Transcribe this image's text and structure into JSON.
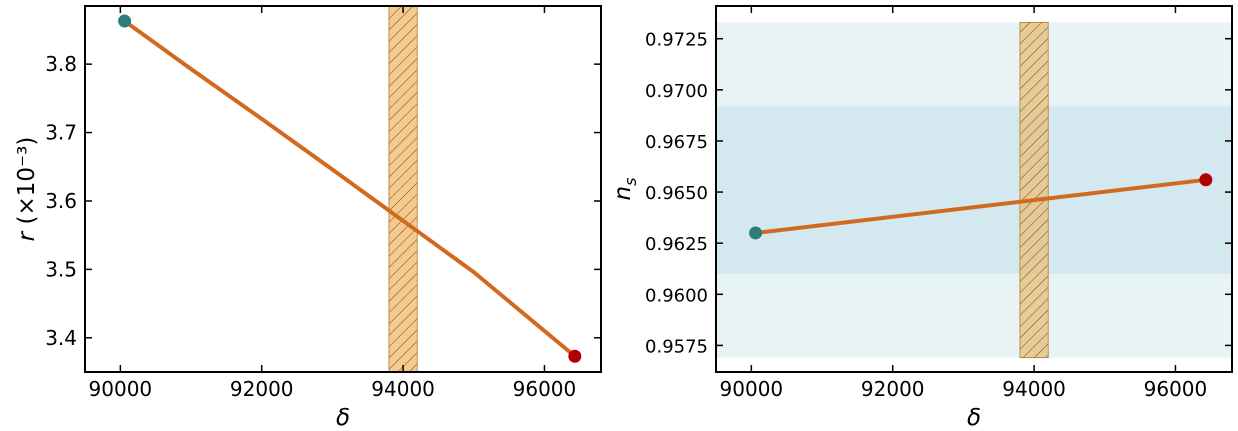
{
  "chart_data": [
    {
      "type": "line",
      "xlabel": "δ",
      "ylabel_main": "r",
      "ylabel_suffix": "(×10⁻³)",
      "xlim": [
        89500,
        96800
      ],
      "ylim": [
        3.35,
        3.885
      ],
      "xticks": [
        90000,
        92000,
        94000,
        96000
      ],
      "xtick_labels": [
        "90000",
        "92000",
        "94000",
        "96000"
      ],
      "yticks": [
        3.4,
        3.5,
        3.6,
        3.7,
        3.8
      ],
      "ytick_labels": [
        "3.4",
        "3.5",
        "3.6",
        "3.7",
        "3.8"
      ],
      "series": [
        {
          "x": [
            90060,
            91000,
            92000,
            93000,
            94000,
            95000,
            96430
          ],
          "y": [
            3.863,
            3.793,
            3.72,
            3.646,
            3.571,
            3.496,
            3.373
          ]
        }
      ],
      "line_color": "#d2691e",
      "start_point": {
        "x": 90060,
        "y": 3.863,
        "color": "#2e7d78"
      },
      "end_point": {
        "x": 96430,
        "y": 3.373,
        "color": "#b00000"
      },
      "vband": {
        "x0": 93800,
        "x1": 94200,
        "color": "#f5c07a"
      },
      "grid": false
    },
    {
      "type": "line",
      "xlabel": "δ",
      "ylabel": "n",
      "ylabel_sub": "s",
      "xlim": [
        89500,
        96800
      ],
      "ylim": [
        0.9562,
        0.9741
      ],
      "xticks": [
        90000,
        92000,
        94000,
        96000
      ],
      "xtick_labels": [
        "90000",
        "92000",
        "94000",
        "96000"
      ],
      "yticks": [
        0.9575,
        0.96,
        0.9625,
        0.965,
        0.9675,
        0.97,
        0.9725
      ],
      "ytick_labels": [
        "0.9575",
        "0.9600",
        "0.9625",
        "0.9650",
        "0.9675",
        "0.9700",
        "0.9725"
      ],
      "series": [
        {
          "x": [
            90060,
            96430
          ],
          "y": [
            0.963,
            0.9656
          ]
        }
      ],
      "line_color": "#d2691e",
      "start_point": {
        "x": 90060,
        "y": 0.963,
        "color": "#2e7d78"
      },
      "end_point": {
        "x": 96430,
        "y": 0.9656,
        "color": "#b00000"
      },
      "hband_outer": {
        "y0": 0.9569,
        "y1": 0.9733,
        "color": "#e8f3f6"
      },
      "hband_inner": {
        "y0": 0.961,
        "y1": 0.9692,
        "color": "#d4e8f0"
      },
      "vband": {
        "x0": 93800,
        "x1": 94200,
        "y0": 0.9569,
        "y1": 0.9733,
        "color": "#e6c486"
      },
      "grid": false
    }
  ]
}
